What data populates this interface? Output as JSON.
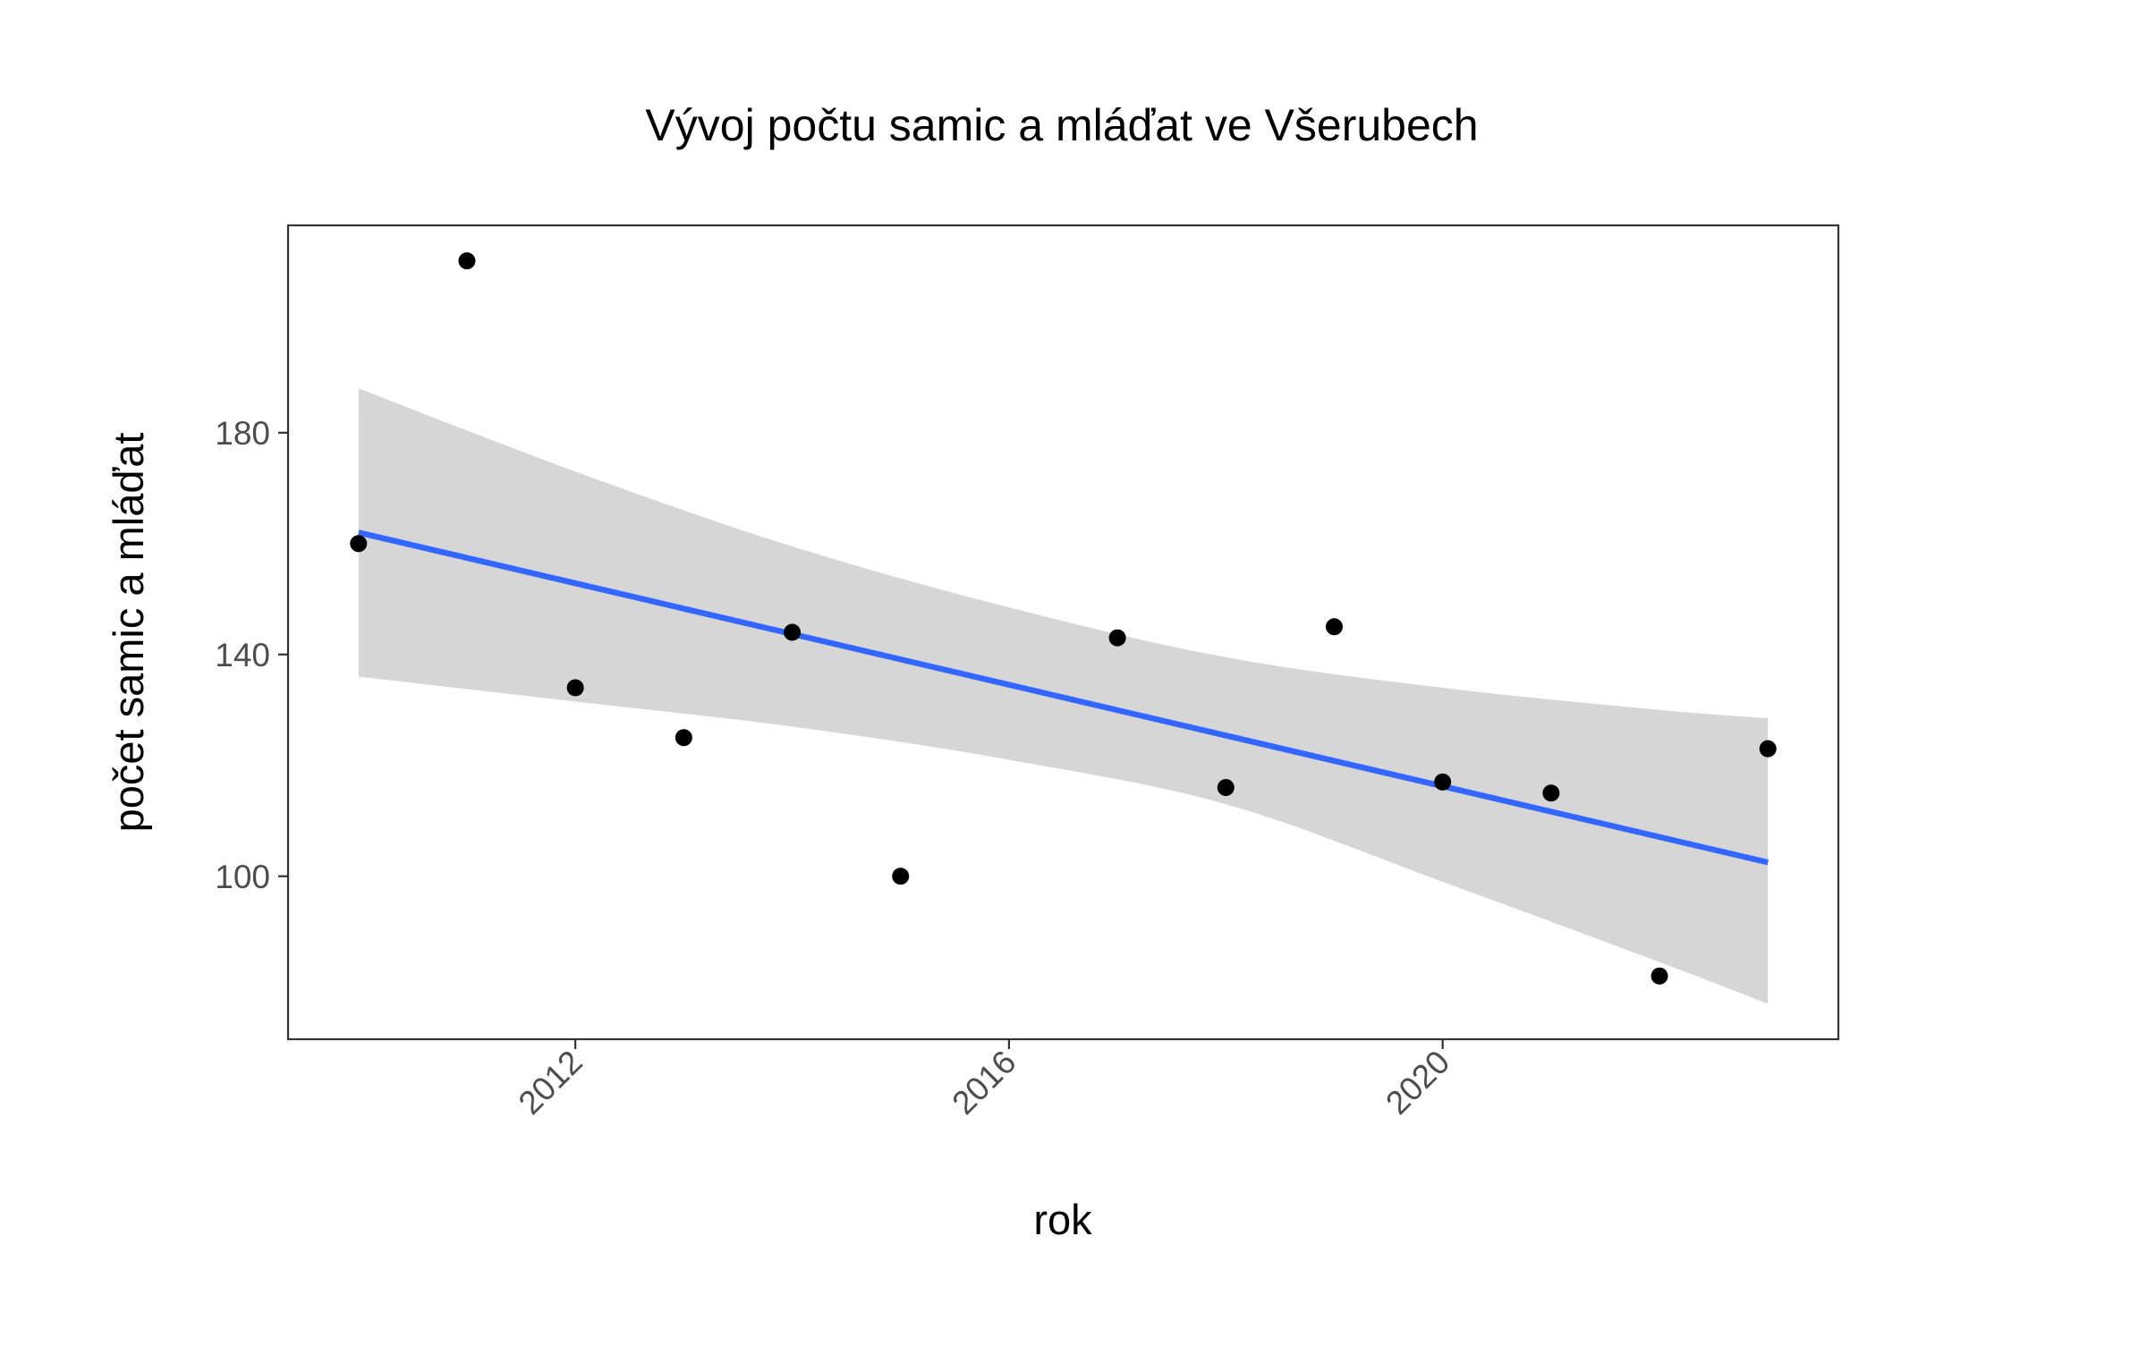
{
  "chart_data": {
    "type": "scatter",
    "title": "Vývoj počtu samic a mláďat ve Všerubech",
    "xlabel": "rok",
    "ylabel": "počet samic a mláďat",
    "xlim": [
      2009.35,
      2023.65
    ],
    "ylim": [
      70.6,
      217.4
    ],
    "xticks": [
      {
        "value": 2012,
        "label": "2012"
      },
      {
        "value": 2016,
        "label": "2016"
      },
      {
        "value": 2020,
        "label": "2020"
      }
    ],
    "yticks": [
      {
        "value": 100,
        "label": "100"
      },
      {
        "value": 140,
        "label": "140"
      },
      {
        "value": 180,
        "label": "180"
      }
    ],
    "grid": false,
    "legend": "none",
    "points": [
      {
        "x": 2010,
        "y": 160
      },
      {
        "x": 2011,
        "y": 211
      },
      {
        "x": 2012,
        "y": 134
      },
      {
        "x": 2013,
        "y": 125
      },
      {
        "x": 2014,
        "y": 144
      },
      {
        "x": 2015,
        "y": 100
      },
      {
        "x": 2017,
        "y": 143
      },
      {
        "x": 2018,
        "y": 116
      },
      {
        "x": 2019,
        "y": 145
      },
      {
        "x": 2020,
        "y": 117
      },
      {
        "x": 2021,
        "y": 115
      },
      {
        "x": 2022,
        "y": 82
      },
      {
        "x": 2023,
        "y": 123
      }
    ],
    "trend": {
      "method": "linear regression",
      "x": [
        2010,
        2023
      ],
      "y": [
        162,
        102.5
      ]
    },
    "confidence_band": {
      "x": [
        2010,
        2012,
        2014,
        2016,
        2018,
        2020,
        2022,
        2023
      ],
      "lower": [
        136,
        131.5,
        127,
        121,
        113,
        99,
        84.5,
        77
      ],
      "upper": [
        188,
        173,
        159.5,
        148.5,
        139.5,
        134,
        130,
        128.5
      ]
    },
    "colors": {
      "points": "#000000",
      "trend_line": "#3366ff",
      "band": "#d6d6d6",
      "panel_border": "#333333",
      "tick_label": "#4d4d4d",
      "background": "#ffffff"
    }
  }
}
